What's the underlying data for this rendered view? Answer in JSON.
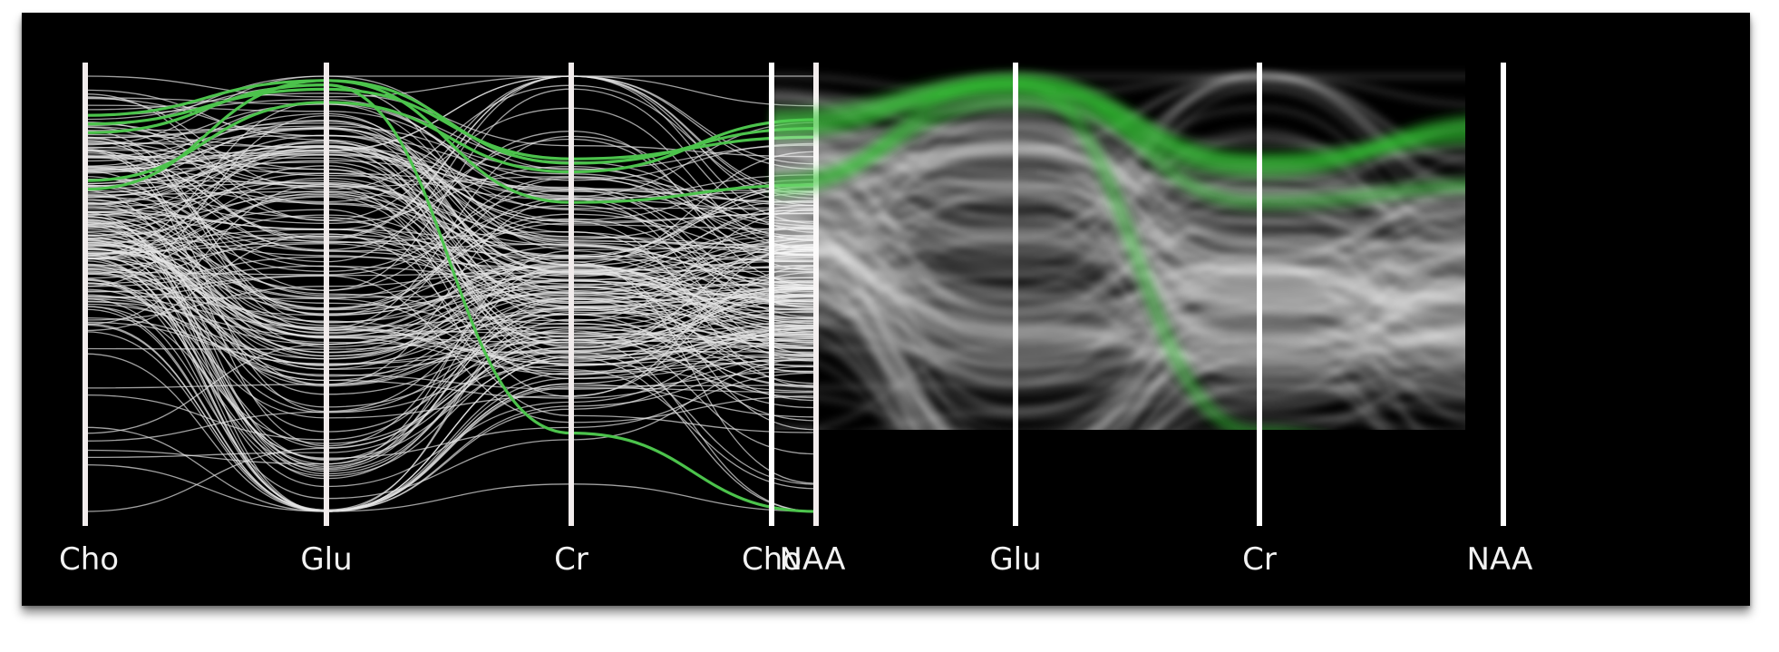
{
  "chart_data": [
    {
      "type": "parallel-coordinates",
      "rendering": "polylines",
      "axes": [
        "Cho",
        "Glu",
        "Cr",
        "NAA"
      ],
      "ylim": [
        0,
        1
      ],
      "colors": {
        "background": "#000000",
        "axis": "#f2ecec",
        "context": "#e6e6e6",
        "highlight": "#4cc34c"
      },
      "highlight_series": [
        {
          "values": [
            0.91,
            0.99,
            0.8,
            0.88
          ]
        },
        {
          "values": [
            0.89,
            0.97,
            0.81,
            0.86
          ]
        },
        {
          "values": [
            0.76,
            0.94,
            0.78,
            0.9
          ]
        },
        {
          "values": [
            0.74,
            0.99,
            0.71,
            0.75
          ]
        },
        {
          "values": [
            0.87,
            0.98,
            0.18,
            0.0
          ]
        }
      ],
      "context_profiles": [
        {
          "values": [
            0.7,
            0.72,
            0.52,
            0.5
          ],
          "spread": 0.16,
          "count": 60
        },
        {
          "values": [
            0.62,
            0.38,
            0.48,
            0.46
          ],
          "spread": 0.12,
          "count": 50
        },
        {
          "values": [
            0.78,
            0.82,
            0.6,
            0.62
          ],
          "spread": 0.12,
          "count": 30
        },
        {
          "values": [
            0.55,
            0.03,
            0.36,
            0.4
          ],
          "spread": 0.12,
          "count": 30
        },
        {
          "values": [
            0.7,
            0.55,
            0.88,
            0.65
          ],
          "spread": 0.2,
          "count": 20
        },
        {
          "values": [
            0.4,
            0.25,
            0.5,
            0.3
          ],
          "spread": 0.2,
          "count": 15
        }
      ]
    },
    {
      "type": "parallel-coordinates",
      "rendering": "density",
      "axes": [
        "Cho",
        "Glu",
        "Cr",
        "NAA"
      ],
      "ylim": [
        0,
        1
      ],
      "colors": {
        "background": "#000000",
        "axis": "#ffffff",
        "context": "#ffffff",
        "highlight": "#33c733"
      }
    }
  ]
}
